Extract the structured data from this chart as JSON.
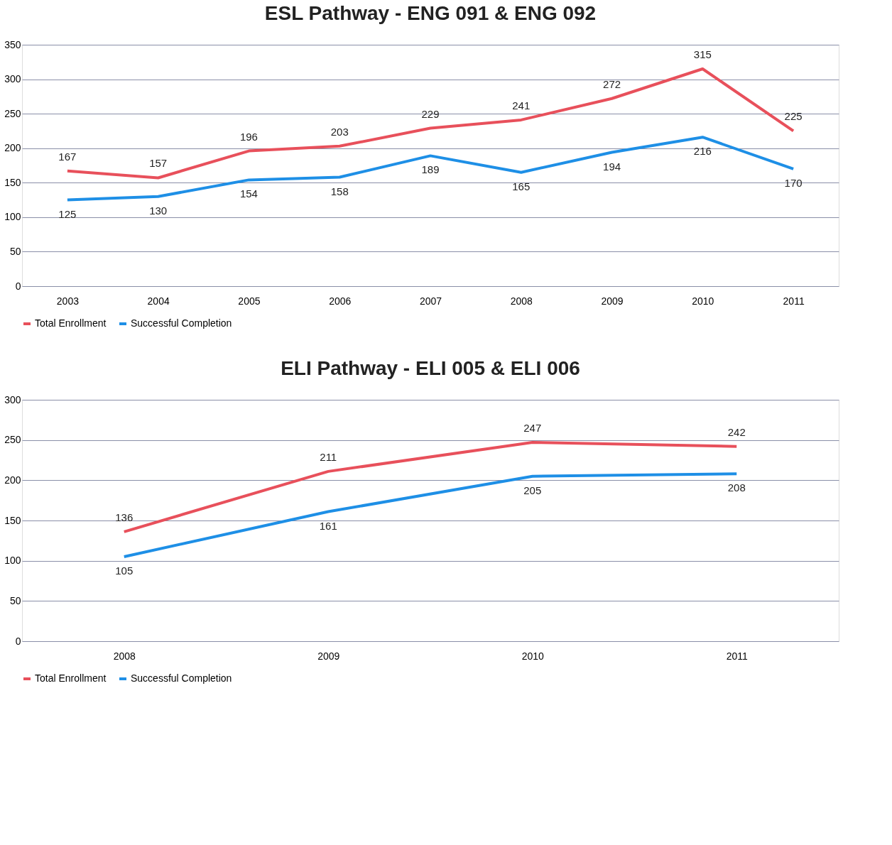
{
  "chart_data": [
    {
      "type": "line",
      "title": "ESL Pathway - ENG 091 & ENG 092",
      "categories": [
        "2003",
        "2004",
        "2005",
        "2006",
        "2007",
        "2008",
        "2009",
        "2010",
        "2011"
      ],
      "series": [
        {
          "name": "Total Enrollment",
          "color": "#e8505b",
          "values": [
            167,
            157,
            196,
            203,
            229,
            241,
            272,
            315,
            225
          ]
        },
        {
          "name": "Successful Completion",
          "color": "#1e8fe6",
          "values": [
            125,
            130,
            154,
            158,
            189,
            165,
            194,
            216,
            170
          ]
        }
      ],
      "ylim": [
        0,
        350
      ],
      "yticks": [
        0,
        50,
        100,
        150,
        200,
        250,
        300,
        350
      ],
      "grid": "y",
      "legend": "bottom",
      "data_labels": true,
      "marker": "none"
    },
    {
      "type": "line",
      "title": "ELI Pathway - ELI 005 & ELI 006",
      "categories": [
        "2008",
        "2009",
        "2010",
        "2011"
      ],
      "series": [
        {
          "name": "Total Enrollment",
          "color": "#e8505b",
          "values": [
            136,
            211,
            247,
            242
          ]
        },
        {
          "name": "Successful Completion",
          "color": "#1e8fe6",
          "values": [
            105,
            161,
            205,
            208
          ]
        }
      ],
      "ylim": [
        0,
        300
      ],
      "yticks": [
        0,
        50,
        100,
        150,
        200,
        250,
        300
      ],
      "grid": "y",
      "legend": "bottom",
      "data_labels": true,
      "marker": "none"
    }
  ]
}
